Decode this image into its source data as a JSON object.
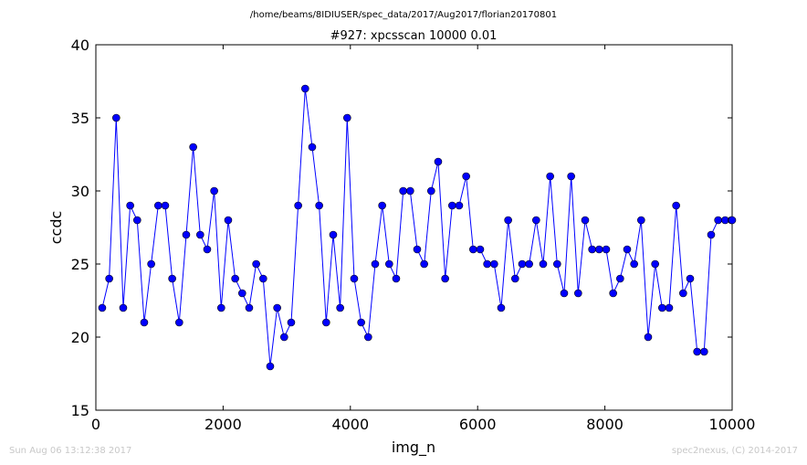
{
  "suptitle": "/home/beams/8IDIUSER/spec_data/2017/Aug2017/florian20170801",
  "footer": {
    "timestamp": "Sun Aug 06 13:12:38 2017",
    "credit": "spec2nexus, (C) 2014-2017"
  },
  "colors": {
    "series": "#0000ff",
    "axes": "#000000",
    "footer": "#c8c8c8"
  },
  "chart_data": {
    "type": "line",
    "title": "#927: xpcsscan 10000 0.01",
    "xlabel": "img_n",
    "ylabel": "ccdc",
    "xlim": [
      0,
      10000
    ],
    "ylim": [
      15,
      40
    ],
    "xticks": [
      0,
      2000,
      4000,
      6000,
      8000,
      10000
    ],
    "yticks": [
      15,
      20,
      25,
      30,
      35,
      40
    ],
    "grid": false,
    "marker": "circle",
    "series": [
      {
        "x": [
          100,
          210,
          320,
          430,
          540,
          650,
          760,
          870,
          980,
          1090,
          1200,
          1310,
          1420,
          1530,
          1640,
          1750,
          1860,
          1970,
          2080,
          2190,
          2300,
          2410,
          2520,
          2630,
          2740,
          2850,
          2960,
          3070,
          3180,
          3290,
          3400,
          3510,
          3620,
          3730,
          3840,
          3950,
          4060,
          4170,
          4280,
          4390,
          4500,
          4610,
          4720,
          4830,
          4940,
          5050,
          5160,
          5270,
          5380,
          5490,
          5600,
          5710,
          5820,
          5930,
          6040,
          6150,
          6260,
          6370,
          6480,
          6590,
          6700,
          6810,
          6920,
          7030,
          7140,
          7250,
          7360,
          7470,
          7580,
          7690,
          7800,
          7910,
          8020,
          8130,
          8240,
          8350,
          8460,
          8570,
          8680,
          8790,
          8900,
          9010,
          9120,
          9230,
          9340,
          9450,
          9560,
          9670,
          9780,
          9890,
          9990,
          10000
        ],
        "y": [
          22,
          24,
          35,
          22,
          29,
          28,
          21,
          25,
          29,
          29,
          24,
          21,
          27,
          33,
          27,
          26,
          30,
          22,
          28,
          24,
          23,
          22,
          25,
          24,
          18,
          22,
          20,
          21,
          29,
          37,
          33,
          29,
          21,
          27,
          22,
          35,
          24,
          21,
          20,
          25,
          29,
          25,
          24,
          30,
          30,
          26,
          25,
          30,
          32,
          24,
          29,
          29,
          31,
          26,
          26,
          25,
          25,
          22,
          28,
          24,
          25,
          25,
          28,
          25,
          31,
          25,
          23,
          31,
          23,
          28,
          26,
          26,
          26,
          23,
          24,
          26,
          25,
          28,
          20,
          25,
          22,
          22,
          29,
          23,
          24,
          19,
          19,
          27,
          28,
          28,
          28,
          28
        ]
      }
    ]
  }
}
